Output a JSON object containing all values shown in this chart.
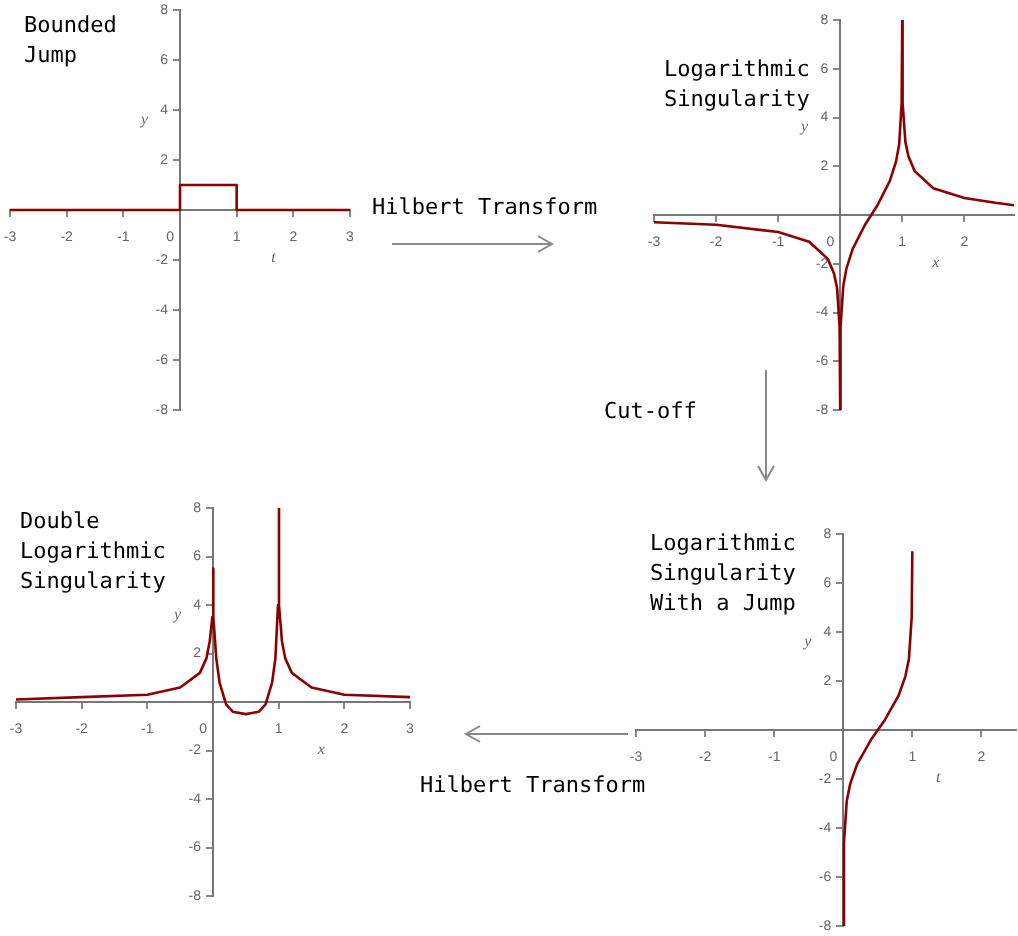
{
  "chart_data": [
    {
      "type": "line",
      "title": "Bounded Jump",
      "xlabel": "t",
      "ylabel": "y",
      "annotations": [
        "Hilbert Transform"
      ],
      "series": [
        {
          "color": "#8b0000",
          "x": [
            -3,
            0,
            0,
            1,
            1,
            3
          ],
          "values": [
            0,
            0,
            1,
            1,
            0,
            0
          ]
        }
      ],
      "xlim": [
        -3,
        3
      ],
      "ylim": [
        -8,
        8
      ],
      "xticks": [
        -3,
        -2,
        -1,
        0,
        1,
        2,
        3
      ],
      "yticks": [
        -8,
        -6,
        -4,
        -2,
        2,
        4,
        6,
        8
      ],
      "grid": false
    },
    {
      "type": "line",
      "title": "Logarithmic Singularity",
      "xlabel": "x",
      "ylabel": "y",
      "annotations": [
        "Cut-off"
      ],
      "series": [
        {
          "color": "#8b0000",
          "x": [
            -3,
            -2,
            -1,
            -0.5,
            -0.2,
            -0.1,
            -0.05,
            -0.01,
            -0.0003,
            0.0003,
            0.01,
            0.05,
            0.1,
            0.2,
            0.3,
            0.4,
            0.5,
            0.6,
            0.7,
            0.8,
            0.9,
            0.95,
            0.99,
            0.9997,
            1.0003,
            1.01,
            1.05,
            1.1,
            1.2,
            1.5,
            2,
            2.5,
            2.8
          ],
          "values": [
            -0.3,
            -0.4,
            -0.7,
            -1.1,
            -1.8,
            -2.4,
            -3,
            -4.6,
            -8,
            -8,
            -4.6,
            -2.9,
            -2.2,
            -1.4,
            -0.9,
            -0.4,
            0,
            0.4,
            0.9,
            1.4,
            2.2,
            2.9,
            4.6,
            8,
            8,
            4.6,
            3,
            2.4,
            1.8,
            1.1,
            0.7,
            0.5,
            0.4
          ]
        }
      ],
      "xlim": [
        -3,
        2.8
      ],
      "ylim": [
        -8,
        8
      ],
      "xticks": [
        -3,
        -2,
        -1,
        0,
        1,
        2
      ],
      "yticks": [
        -8,
        -6,
        -4,
        -2,
        2,
        4,
        6,
        8
      ],
      "grid": false
    },
    {
      "type": "line",
      "title": "Logarithmic Singularity With a Jump",
      "xlabel": "t",
      "ylabel": "y",
      "annotations": [
        "Hilbert Transform"
      ],
      "series": [
        {
          "color": "#8b0000",
          "x": [
            0.0003,
            0.01,
            0.05,
            0.1,
            0.2,
            0.3,
            0.4,
            0.5,
            0.6,
            0.7,
            0.8,
            0.9,
            0.95,
            0.99,
            0.9993
          ],
          "values": [
            -8,
            -4.6,
            -2.9,
            -2.2,
            -1.4,
            -0.9,
            -0.4,
            0,
            0.4,
            0.9,
            1.4,
            2.2,
            2.9,
            4.6,
            7.3
          ]
        }
      ],
      "xlim": [
        -3,
        2.5
      ],
      "ylim": [
        -8,
        8
      ],
      "xticks": [
        -3,
        -2,
        -1,
        0,
        1,
        2
      ],
      "yticks": [
        -8,
        -6,
        -4,
        -2,
        2,
        4,
        6,
        8
      ],
      "grid": false
    },
    {
      "type": "line",
      "title": "Double Logarithmic Singularity",
      "xlabel": "x",
      "ylabel": "y",
      "series": [
        {
          "color": "#8b0000",
          "x": [
            -3,
            -2,
            -1,
            -0.5,
            -0.2,
            -0.1,
            -0.05,
            -0.01,
            0,
            0.01,
            0.05,
            0.1,
            0.2,
            0.3,
            0.5,
            0.7,
            0.8,
            0.9,
            0.95,
            0.99,
            1,
            1.01,
            1.05,
            1.1,
            1.2,
            1.5,
            2,
            3
          ],
          "values": [
            0.1,
            0.2,
            0.3,
            0.6,
            1.2,
            1.8,
            2.5,
            3.5,
            5.5,
            3.5,
            1.8,
            0.8,
            -0.1,
            -0.4,
            -0.5,
            -0.4,
            -0.1,
            0.8,
            1.8,
            4,
            8,
            4,
            2.5,
            1.8,
            1.2,
            0.6,
            0.3,
            0.2
          ]
        }
      ],
      "xlim": [
        -3,
        3
      ],
      "ylim": [
        -8,
        8
      ],
      "xticks": [
        -3,
        -2,
        -1,
        0,
        1,
        2,
        3
      ],
      "yticks": [
        -8,
        -6,
        -4,
        -2,
        2,
        4,
        6,
        8
      ],
      "grid": false
    }
  ]
}
